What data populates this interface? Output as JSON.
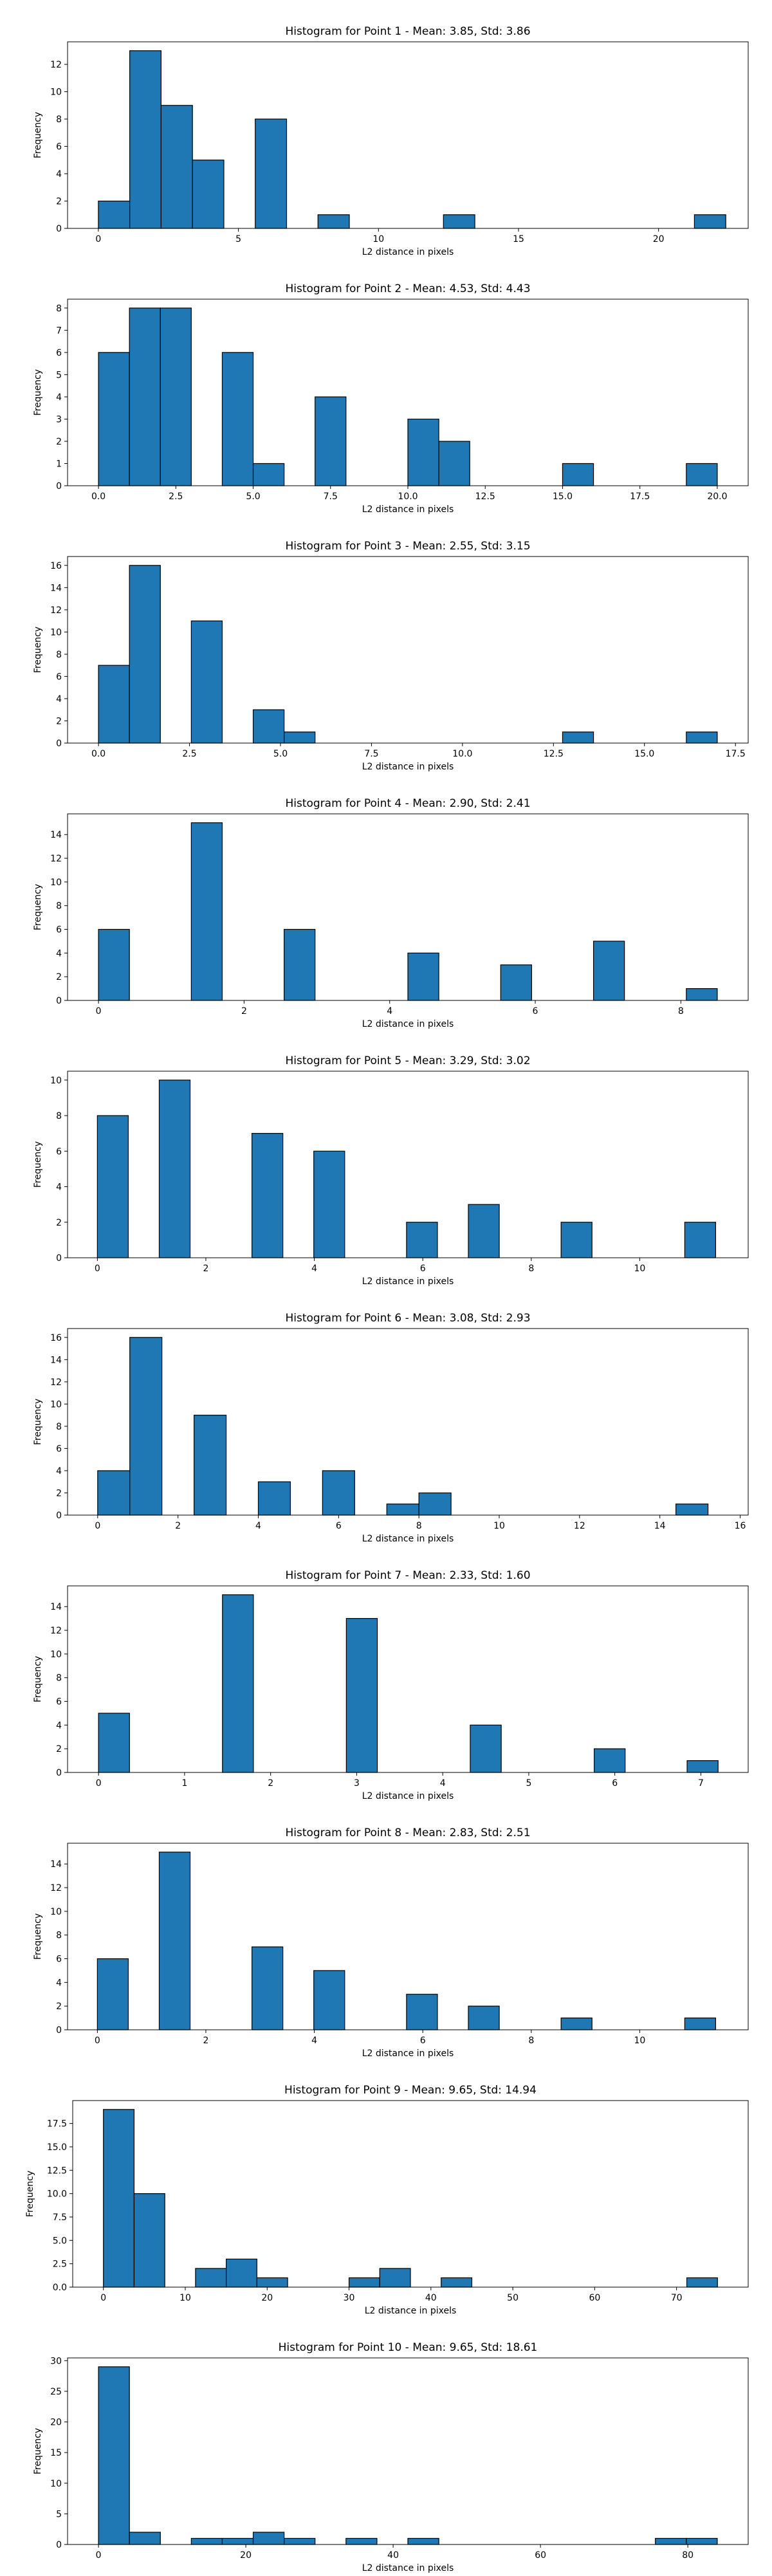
{
  "figure": {
    "bar_color": "#1f77b4",
    "edge_color": "#000000"
  },
  "chart_data": [
    {
      "type": "bar",
      "title": "Histogram for Point 1 - Mean: 3.85, Std: 3.86",
      "xlabel": "L2 distance in pixels",
      "ylabel": "Frequency",
      "xlim": [
        -1.1,
        23.2
      ],
      "ylim": [
        0,
        13.65
      ],
      "xticks": [
        0,
        5,
        10,
        15,
        20
      ],
      "xtick_labels": [
        "0",
        "5",
        "10",
        "15",
        "20"
      ],
      "yticks": [
        0,
        2,
        4,
        6,
        8,
        10,
        12
      ],
      "ytick_labels": [
        "0",
        "2",
        "4",
        "6",
        "8",
        "10",
        "12"
      ],
      "bins": [
        {
          "x0": 0.0,
          "x1": 1.12,
          "count": 2
        },
        {
          "x0": 1.12,
          "x1": 2.24,
          "count": 13
        },
        {
          "x0": 2.24,
          "x1": 3.36,
          "count": 9
        },
        {
          "x0": 3.36,
          "x1": 4.48,
          "count": 5
        },
        {
          "x0": 5.6,
          "x1": 6.72,
          "count": 8
        },
        {
          "x0": 7.84,
          "x1": 8.96,
          "count": 1
        },
        {
          "x0": 12.32,
          "x1": 13.44,
          "count": 1
        },
        {
          "x0": 21.28,
          "x1": 22.4,
          "count": 1
        }
      ]
    },
    {
      "type": "bar",
      "title": "Histogram for Point 2 - Mean: 4.53, Std: 4.43",
      "xlabel": "L2 distance in pixels",
      "ylabel": "Frequency",
      "xlim": [
        -1.0,
        21.0
      ],
      "ylim": [
        0,
        8.4
      ],
      "xticks": [
        0,
        2.5,
        5,
        7.5,
        10,
        12.5,
        15,
        17.5,
        20
      ],
      "xtick_labels": [
        "0.0",
        "2.5",
        "5.0",
        "7.5",
        "10.0",
        "12.5",
        "15.0",
        "17.5",
        "20.0"
      ],
      "yticks": [
        0,
        1,
        2,
        3,
        4,
        5,
        6,
        7,
        8
      ],
      "ytick_labels": [
        "0",
        "1",
        "2",
        "3",
        "4",
        "5",
        "6",
        "7",
        "8"
      ],
      "bins": [
        {
          "x0": 0.0,
          "x1": 1.0,
          "count": 6
        },
        {
          "x0": 1.0,
          "x1": 2.0,
          "count": 8
        },
        {
          "x0": 2.0,
          "x1": 3.0,
          "count": 8
        },
        {
          "x0": 4.0,
          "x1": 5.0,
          "count": 6
        },
        {
          "x0": 5.0,
          "x1": 6.0,
          "count": 1
        },
        {
          "x0": 7.0,
          "x1": 8.0,
          "count": 4
        },
        {
          "x0": 10.0,
          "x1": 11.0,
          "count": 3
        },
        {
          "x0": 11.0,
          "x1": 12.0,
          "count": 2
        },
        {
          "x0": 15.0,
          "x1": 16.0,
          "count": 1
        },
        {
          "x0": 19.0,
          "x1": 20.0,
          "count": 1
        }
      ]
    },
    {
      "type": "bar",
      "title": "Histogram for Point 3 - Mean: 2.55, Std: 3.15",
      "xlabel": "L2 distance in pixels",
      "ylabel": "Frequency",
      "xlim": [
        -0.85,
        17.85
      ],
      "ylim": [
        0,
        16.8
      ],
      "xticks": [
        0,
        2.5,
        5,
        7.5,
        10,
        12.5,
        15,
        17.5
      ],
      "xtick_labels": [
        "0.0",
        "2.5",
        "5.0",
        "7.5",
        "10.0",
        "12.5",
        "15.0",
        "17.5"
      ],
      "yticks": [
        0,
        2,
        4,
        6,
        8,
        10,
        12,
        14,
        16
      ],
      "ytick_labels": [
        "0",
        "2",
        "4",
        "6",
        "8",
        "10",
        "12",
        "14",
        "16"
      ],
      "bins": [
        {
          "x0": 0.0,
          "x1": 0.85,
          "count": 7
        },
        {
          "x0": 0.85,
          "x1": 1.7,
          "count": 16
        },
        {
          "x0": 2.55,
          "x1": 3.4,
          "count": 11
        },
        {
          "x0": 4.25,
          "x1": 5.1,
          "count": 3
        },
        {
          "x0": 5.1,
          "x1": 5.95,
          "count": 1
        },
        {
          "x0": 12.75,
          "x1": 13.6,
          "count": 1
        },
        {
          "x0": 16.15,
          "x1": 17.0,
          "count": 1
        }
      ]
    },
    {
      "type": "bar",
      "title": "Histogram for Point 4 - Mean: 2.90, Std: 2.41",
      "xlabel": "L2 distance in pixels",
      "ylabel": "Frequency",
      "xlim": [
        -0.425,
        8.925
      ],
      "ylim": [
        0,
        15.75
      ],
      "xticks": [
        0,
        2,
        4,
        6,
        8
      ],
      "xtick_labels": [
        "0",
        "2",
        "4",
        "6",
        "8"
      ],
      "yticks": [
        0,
        2,
        4,
        6,
        8,
        10,
        12,
        14
      ],
      "ytick_labels": [
        "0",
        "2",
        "4",
        "6",
        "8",
        "10",
        "12",
        "14"
      ],
      "bins": [
        {
          "x0": 0.0,
          "x1": 0.425,
          "count": 6
        },
        {
          "x0": 1.275,
          "x1": 1.7,
          "count": 15
        },
        {
          "x0": 2.55,
          "x1": 2.975,
          "count": 6
        },
        {
          "x0": 4.25,
          "x1": 4.675,
          "count": 4
        },
        {
          "x0": 5.525,
          "x1": 5.95,
          "count": 3
        },
        {
          "x0": 6.8,
          "x1": 7.225,
          "count": 5
        },
        {
          "x0": 8.075,
          "x1": 8.5,
          "count": 1
        }
      ]
    },
    {
      "type": "bar",
      "title": "Histogram for Point 5 - Mean: 3.29, Std: 3.02",
      "xlabel": "L2 distance in pixels",
      "ylabel": "Frequency",
      "xlim": [
        -0.55,
        12.0
      ],
      "ylim": [
        0,
        10.5
      ],
      "xticks": [
        0,
        2,
        4,
        6,
        8,
        10
      ],
      "xtick_labels": [
        "0",
        "2",
        "4",
        "6",
        "8",
        "10"
      ],
      "yticks": [
        0,
        2,
        4,
        6,
        8,
        10
      ],
      "ytick_labels": [
        "0",
        "2",
        "4",
        "6",
        "8",
        "10"
      ],
      "bins": [
        {
          "x0": 0.0,
          "x1": 0.57,
          "count": 8
        },
        {
          "x0": 1.14,
          "x1": 1.71,
          "count": 10
        },
        {
          "x0": 2.85,
          "x1": 3.42,
          "count": 7
        },
        {
          "x0": 3.99,
          "x1": 4.56,
          "count": 6
        },
        {
          "x0": 5.7,
          "x1": 6.27,
          "count": 2
        },
        {
          "x0": 6.84,
          "x1": 7.41,
          "count": 3
        },
        {
          "x0": 8.55,
          "x1": 9.12,
          "count": 2
        },
        {
          "x0": 10.83,
          "x1": 11.4,
          "count": 2
        }
      ]
    },
    {
      "type": "bar",
      "title": "Histogram for Point 6 - Mean: 3.08, Std: 2.93",
      "xlabel": "L2 distance in pixels",
      "ylabel": "Frequency",
      "xlim": [
        -0.75,
        16.2
      ],
      "ylim": [
        0,
        16.8
      ],
      "xticks": [
        0,
        2,
        4,
        6,
        8,
        10,
        12,
        14,
        16
      ],
      "xtick_labels": [
        "0",
        "2",
        "4",
        "6",
        "8",
        "10",
        "12",
        "14",
        "16"
      ],
      "yticks": [
        0,
        2,
        4,
        6,
        8,
        10,
        12,
        14,
        16
      ],
      "ytick_labels": [
        "0",
        "2",
        "4",
        "6",
        "8",
        "10",
        "12",
        "14",
        "16"
      ],
      "bins": [
        {
          "x0": 0.0,
          "x1": 0.8,
          "count": 4
        },
        {
          "x0": 0.8,
          "x1": 1.6,
          "count": 16
        },
        {
          "x0": 2.4,
          "x1": 3.2,
          "count": 9
        },
        {
          "x0": 4.0,
          "x1": 4.8,
          "count": 3
        },
        {
          "x0": 5.6,
          "x1": 6.4,
          "count": 4
        },
        {
          "x0": 7.2,
          "x1": 8.0,
          "count": 1
        },
        {
          "x0": 8.0,
          "x1": 8.8,
          "count": 2
        },
        {
          "x0": 14.4,
          "x1": 15.2,
          "count": 1
        }
      ]
    },
    {
      "type": "bar",
      "title": "Histogram for Point 7 - Mean: 2.33, Std: 1.60",
      "xlabel": "L2 distance in pixels",
      "ylabel": "Frequency",
      "xlim": [
        -0.36,
        7.55
      ],
      "ylim": [
        0,
        15.75
      ],
      "xticks": [
        0,
        1,
        2,
        3,
        4,
        5,
        6,
        7
      ],
      "xtick_labels": [
        "0",
        "1",
        "2",
        "3",
        "4",
        "5",
        "6",
        "7"
      ],
      "yticks": [
        0,
        2,
        4,
        6,
        8,
        10,
        12,
        14
      ],
      "ytick_labels": [
        "0",
        "2",
        "4",
        "6",
        "8",
        "10",
        "12",
        "14"
      ],
      "bins": [
        {
          "x0": 0.0,
          "x1": 0.36,
          "count": 5
        },
        {
          "x0": 1.44,
          "x1": 1.8,
          "count": 15
        },
        {
          "x0": 2.88,
          "x1": 3.24,
          "count": 13
        },
        {
          "x0": 4.32,
          "x1": 4.68,
          "count": 4
        },
        {
          "x0": 5.76,
          "x1": 6.12,
          "count": 2
        },
        {
          "x0": 6.84,
          "x1": 7.2,
          "count": 1
        }
      ]
    },
    {
      "type": "bar",
      "title": "Histogram for Point 8 - Mean: 2.83, Std: 2.51",
      "xlabel": "L2 distance in pixels",
      "ylabel": "Frequency",
      "xlim": [
        -0.55,
        12.0
      ],
      "ylim": [
        0,
        15.75
      ],
      "xticks": [
        0,
        2,
        4,
        6,
        8,
        10
      ],
      "xtick_labels": [
        "0",
        "2",
        "4",
        "6",
        "8",
        "10"
      ],
      "yticks": [
        0,
        2,
        4,
        6,
        8,
        10,
        12,
        14
      ],
      "ytick_labels": [
        "0",
        "2",
        "4",
        "6",
        "8",
        "10",
        "12",
        "14"
      ],
      "bins": [
        {
          "x0": 0.0,
          "x1": 0.57,
          "count": 6
        },
        {
          "x0": 1.14,
          "x1": 1.71,
          "count": 15
        },
        {
          "x0": 2.85,
          "x1": 3.42,
          "count": 7
        },
        {
          "x0": 3.99,
          "x1": 4.56,
          "count": 5
        },
        {
          "x0": 5.7,
          "x1": 6.27,
          "count": 3
        },
        {
          "x0": 6.84,
          "x1": 7.41,
          "count": 2
        },
        {
          "x0": 8.55,
          "x1": 9.12,
          "count": 1
        },
        {
          "x0": 10.83,
          "x1": 11.4,
          "count": 1
        }
      ]
    },
    {
      "type": "bar",
      "title": "Histogram for Point 9 - Mean: 9.65, Std: 14.94",
      "xlabel": "L2 distance in pixels",
      "ylabel": "Frequency",
      "xlim": [
        -3.75,
        78.75
      ],
      "ylim": [
        0,
        19.95
      ],
      "xticks": [
        0,
        10,
        20,
        30,
        40,
        50,
        60,
        70
      ],
      "xtick_labels": [
        "0",
        "10",
        "20",
        "30",
        "40",
        "50",
        "60",
        "70"
      ],
      "yticks": [
        0,
        2.5,
        5,
        7.5,
        10,
        12.5,
        15,
        17.5
      ],
      "ytick_labels": [
        "0.0",
        "2.5",
        "5.0",
        "7.5",
        "10.0",
        "12.5",
        "15.0",
        "17.5"
      ],
      "bins": [
        {
          "x0": 0.0,
          "x1": 3.75,
          "count": 19
        },
        {
          "x0": 3.75,
          "x1": 7.5,
          "count": 10
        },
        {
          "x0": 11.25,
          "x1": 15.0,
          "count": 2
        },
        {
          "x0": 15.0,
          "x1": 18.75,
          "count": 3
        },
        {
          "x0": 18.75,
          "x1": 22.5,
          "count": 1
        },
        {
          "x0": 30.0,
          "x1": 33.75,
          "count": 1
        },
        {
          "x0": 33.75,
          "x1": 37.5,
          "count": 2
        },
        {
          "x0": 41.25,
          "x1": 45.0,
          "count": 1
        },
        {
          "x0": 71.25,
          "x1": 75.0,
          "count": 1
        }
      ]
    },
    {
      "type": "bar",
      "title": "Histogram for Point 10 - Mean: 9.65, Std: 18.61",
      "xlabel": "L2 distance in pixels",
      "ylabel": "Frequency",
      "xlim": [
        -4.2,
        88.2
      ],
      "ylim": [
        0,
        30.45
      ],
      "xticks": [
        0,
        20,
        40,
        60,
        80
      ],
      "xtick_labels": [
        "0",
        "20",
        "40",
        "60",
        "80"
      ],
      "yticks": [
        0,
        5,
        10,
        15,
        20,
        25,
        30
      ],
      "ytick_labels": [
        "0",
        "5",
        "10",
        "15",
        "20",
        "25",
        "30"
      ],
      "bins": [
        {
          "x0": 0.0,
          "x1": 4.2,
          "count": 29
        },
        {
          "x0": 4.2,
          "x1": 8.4,
          "count": 2
        },
        {
          "x0": 12.6,
          "x1": 16.8,
          "count": 1
        },
        {
          "x0": 16.8,
          "x1": 21.0,
          "count": 1
        },
        {
          "x0": 21.0,
          "x1": 25.2,
          "count": 2
        },
        {
          "x0": 25.2,
          "x1": 29.4,
          "count": 1
        },
        {
          "x0": 33.6,
          "x1": 37.8,
          "count": 1
        },
        {
          "x0": 42.0,
          "x1": 46.2,
          "count": 1
        },
        {
          "x0": 75.6,
          "x1": 79.8,
          "count": 1
        },
        {
          "x0": 79.8,
          "x1": 84.0,
          "count": 1
        }
      ]
    }
  ]
}
